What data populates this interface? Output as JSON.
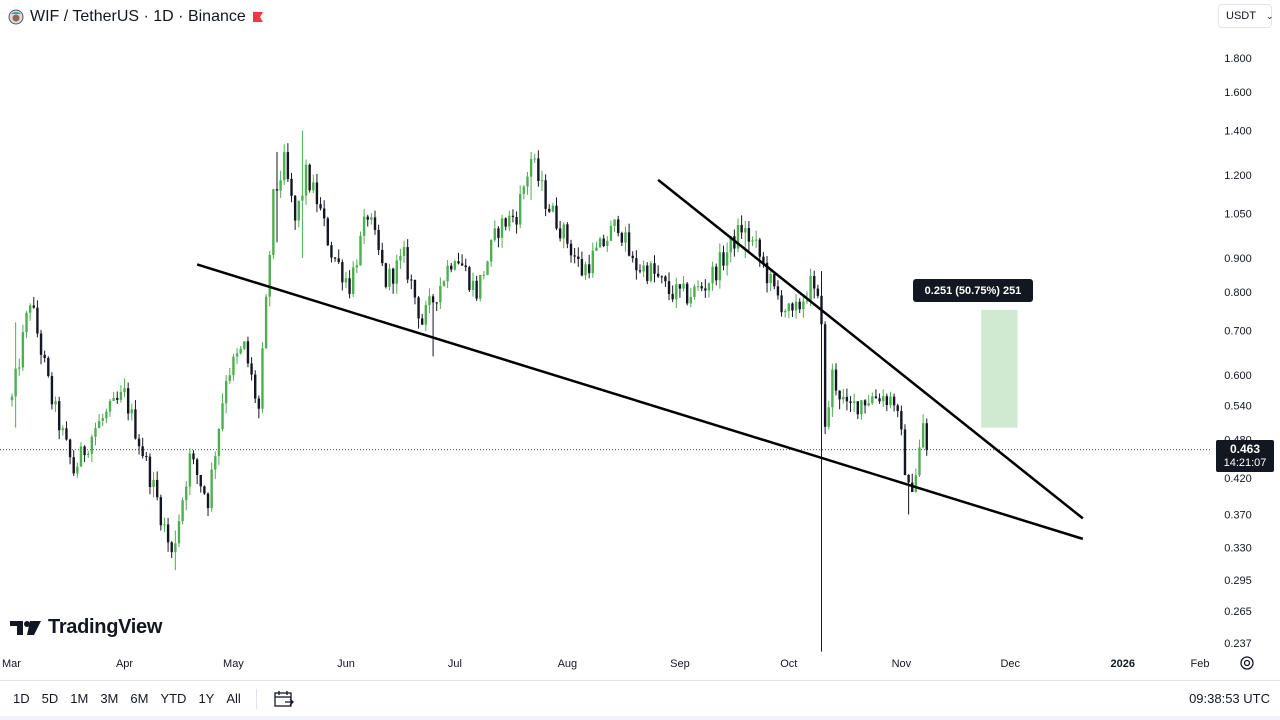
{
  "header": {
    "title": "WIF / TetherUS · 1D · Binance",
    "currency": "USDT"
  },
  "price_badge": {
    "price": "0.463",
    "countdown": "14:21:07"
  },
  "measure": {
    "label": "0.251 (50.75%) 251"
  },
  "branding": {
    "logo_text": "TradingView"
  },
  "bottom_bar": {
    "ranges": [
      "1D",
      "5D",
      "1M",
      "3M",
      "6M",
      "YTD",
      "1Y",
      "All"
    ],
    "clock": "09:38:53 UTC"
  },
  "colors": {
    "up": "#089981",
    "down": "#f23645",
    "up_chart": "#26a69a",
    "candle_up": "#4caf50",
    "candle_down": "#131722",
    "measure_fill": "#c8e6c9",
    "badge": "#131722"
  },
  "chart_data": {
    "type": "candlestick",
    "scale": "log",
    "x_ticks": [
      "Mar",
      "Apr",
      "May",
      "Jun",
      "Jul",
      "Aug",
      "Sep",
      "Oct",
      "Nov",
      "Dec",
      "2026",
      "Feb"
    ],
    "y_ticks": [
      1.8,
      1.6,
      1.4,
      1.2,
      1.05,
      0.9,
      0.8,
      0.7,
      0.6,
      0.54,
      0.48,
      0.42,
      0.37,
      0.33,
      0.295,
      0.265,
      0.237
    ],
    "y_tick_labels": [
      "1.800",
      "1.600",
      "1.400",
      "1.200",
      "1.050",
      "0.900",
      "0.800",
      "0.700",
      "0.600",
      "0.540",
      "0.480",
      "0.420",
      "0.370",
      "0.330",
      "0.295",
      "0.265",
      "0.237"
    ],
    "current_price": 0.463,
    "anchors": [
      [
        "Mar 01",
        0.55
      ],
      [
        "Mar 06",
        0.78
      ],
      [
        "Mar 12",
        0.55
      ],
      [
        "Mar 18",
        0.43
      ],
      [
        "Mar 24",
        0.5
      ],
      [
        "Apr 01",
        0.56
      ],
      [
        "Apr 06",
        0.46
      ],
      [
        "Apr 10",
        0.39
      ],
      [
        "Apr 14",
        0.32
      ],
      [
        "Apr 19",
        0.45
      ],
      [
        "Apr 24",
        0.39
      ],
      [
        "Apr 29",
        0.6
      ],
      [
        "May 04",
        0.66
      ],
      [
        "May 08",
        0.53
      ],
      [
        "May 12",
        1.1
      ],
      [
        "May 15",
        1.25
      ],
      [
        "May 18",
        1.02
      ],
      [
        "May 21",
        1.2
      ],
      [
        "May 24",
        1.1
      ],
      [
        "May 28",
        0.92
      ],
      [
        "Jun 02",
        0.82
      ],
      [
        "Jun 07",
        1.05
      ],
      [
        "Jun 12",
        0.83
      ],
      [
        "Jun 17",
        0.9
      ],
      [
        "Jun 22",
        0.72
      ],
      [
        "Jun 26",
        0.8
      ],
      [
        "Jul 01",
        0.92
      ],
      [
        "Jul 07",
        0.8
      ],
      [
        "Jul 13",
        1.0
      ],
      [
        "Jul 18",
        1.05
      ],
      [
        "Jul 22",
        1.27
      ],
      [
        "Jul 26",
        1.1
      ],
      [
        "Jul 31",
        0.98
      ],
      [
        "Aug 05",
        0.86
      ],
      [
        "Aug 10",
        0.93
      ],
      [
        "Aug 15",
        1.02
      ],
      [
        "Aug 19",
        0.88
      ],
      [
        "Aug 24",
        0.86
      ],
      [
        "Aug 29",
        0.8
      ],
      [
        "Sep 03",
        0.79
      ],
      [
        "Sep 08",
        0.82
      ],
      [
        "Sep 13",
        0.9
      ],
      [
        "Sep 18",
        1.0
      ],
      [
        "Sep 22",
        0.93
      ],
      [
        "Sep 27",
        0.8
      ],
      [
        "Oct 02",
        0.73
      ],
      [
        "Oct 07",
        0.82
      ],
      [
        "Oct 10",
        0.74
      ],
      [
        "Oct 11",
        0.49
      ],
      [
        "Oct 13",
        0.6
      ],
      [
        "Oct 17",
        0.53
      ],
      [
        "Oct 21",
        0.55
      ],
      [
        "Oct 26",
        0.56
      ],
      [
        "Oct 30",
        0.55
      ],
      [
        "Nov 01",
        0.48
      ],
      [
        "Nov 03",
        0.4
      ],
      [
        "Nov 05",
        0.43
      ],
      [
        "Nov 07",
        0.5
      ],
      [
        "Nov 08",
        0.463
      ]
    ],
    "wicks": [
      [
        "Mar 02",
        0.72,
        0.5
      ],
      [
        "Apr 15",
        0.35,
        0.305
      ],
      [
        "May 13",
        1.3,
        0.95
      ],
      [
        "May 20",
        1.4,
        0.9
      ],
      [
        "Jun 25",
        0.78,
        0.64
      ],
      [
        "Jul 22",
        1.3,
        1.1
      ],
      [
        "Sep 19",
        1.0,
        0.9
      ],
      [
        "Oct 10",
        0.86,
        0.23
      ],
      [
        "Nov 03",
        0.42,
        0.37
      ]
    ],
    "trendlines": [
      {
        "name": "lower",
        "points": [
          [
            "Apr 21",
            0.88
          ],
          [
            "Dec 21",
            0.34
          ]
        ]
      },
      {
        "name": "upper",
        "points": [
          [
            "Aug 26",
            1.18
          ],
          [
            "Dec 21",
            0.365
          ]
        ]
      }
    ],
    "measure_box": {
      "from": [
        "Nov 23",
        0.5
      ],
      "to": [
        "Dec 03",
        0.752
      ]
    }
  }
}
